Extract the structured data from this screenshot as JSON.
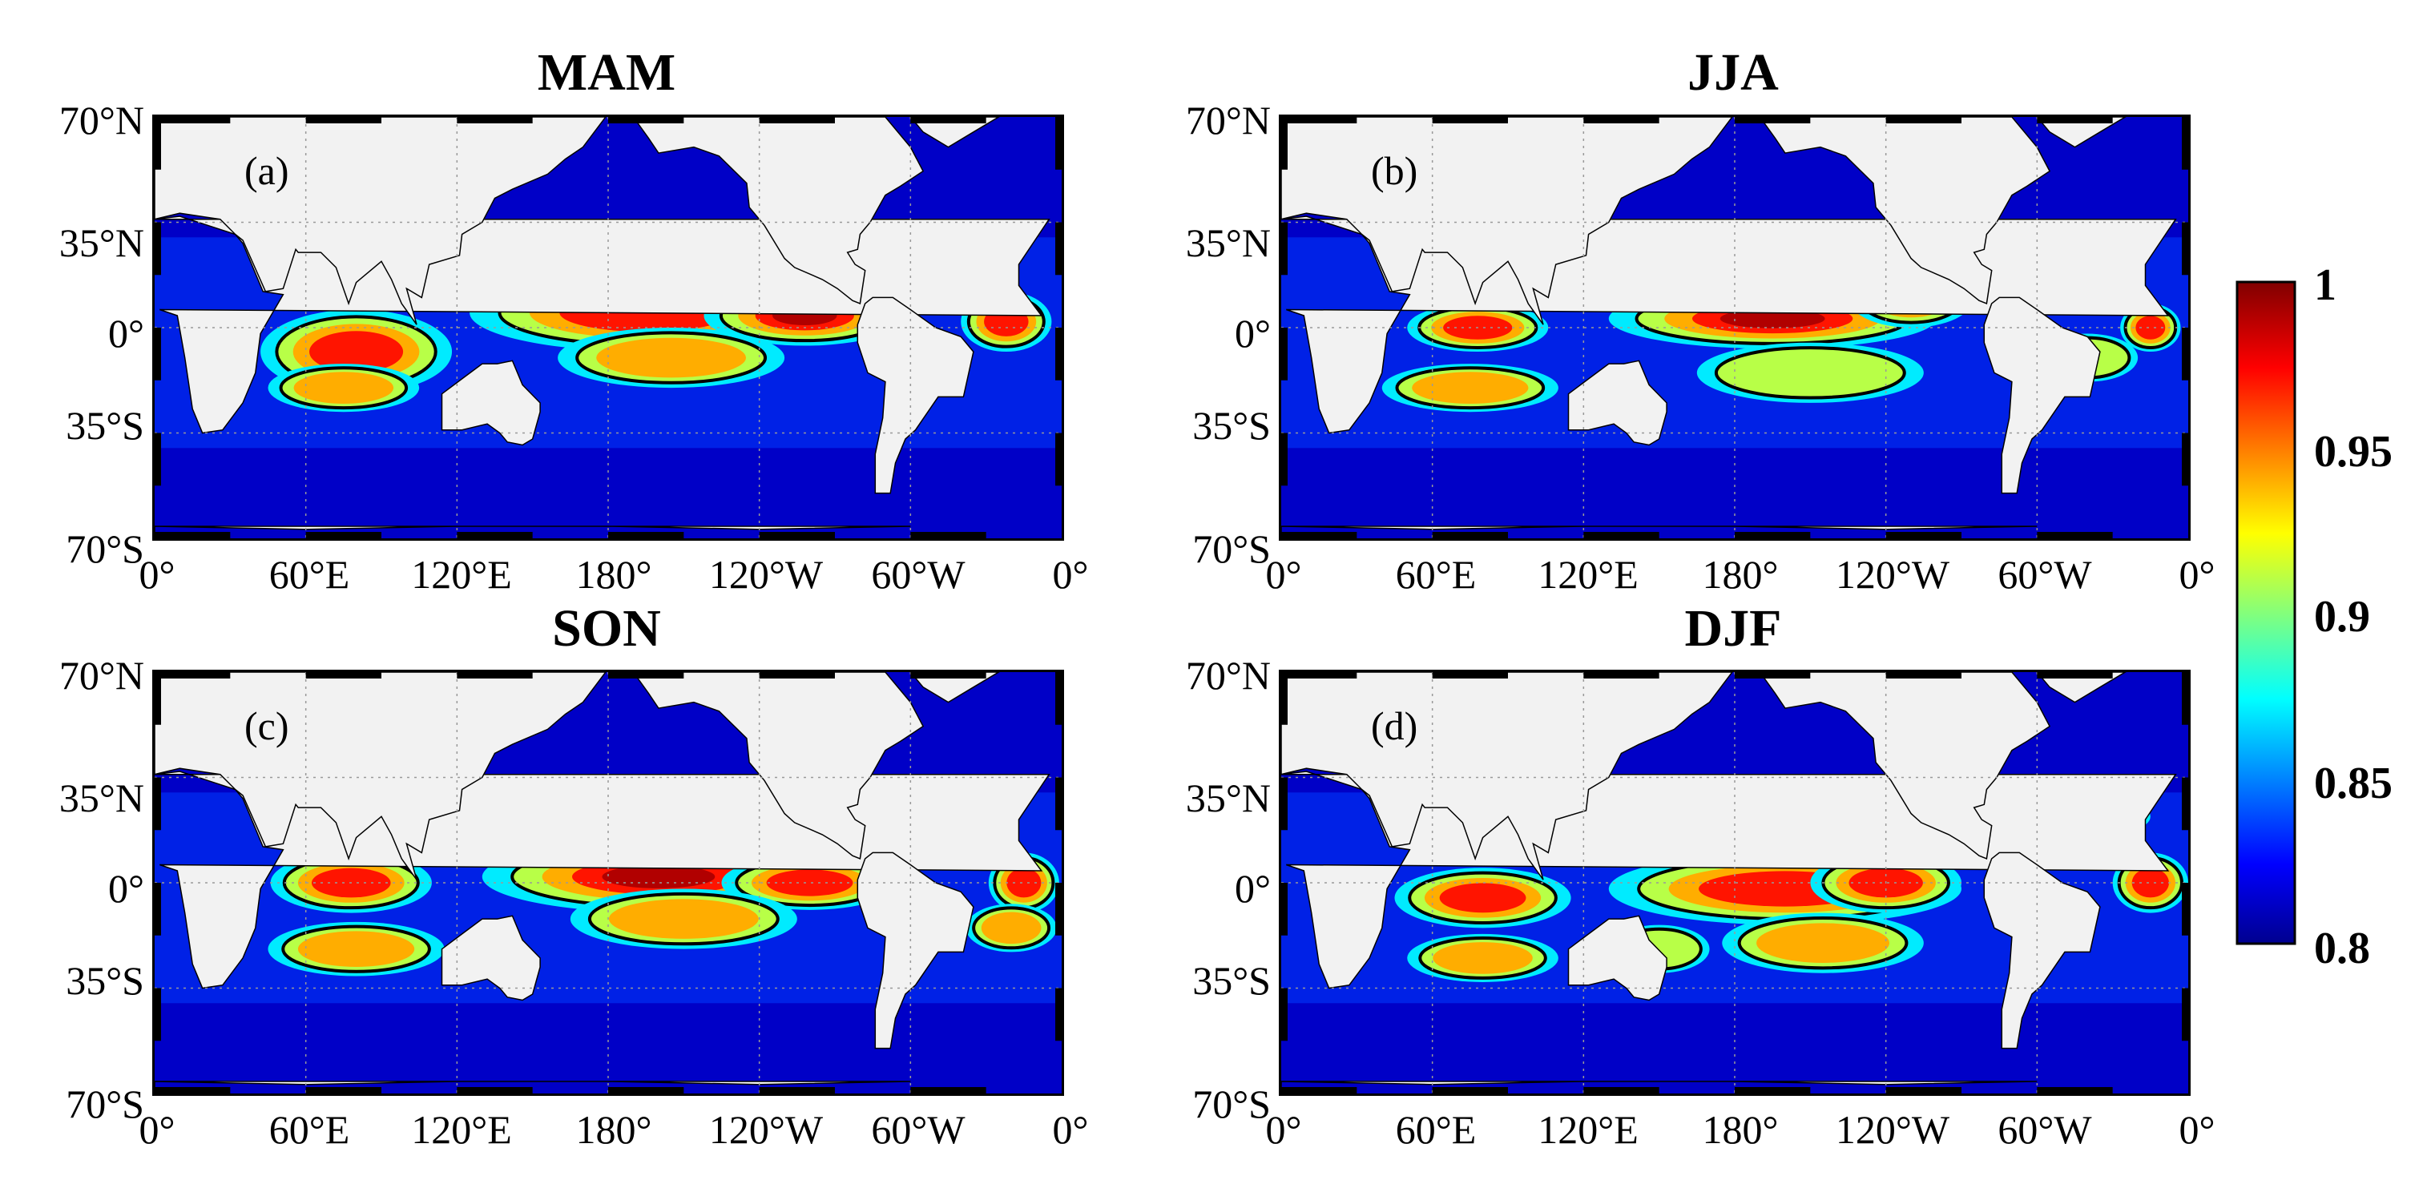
{
  "panels": [
    {
      "title": "MAM",
      "letter": "(a)"
    },
    {
      "title": "JJA",
      "letter": "(b)"
    },
    {
      "title": "SON",
      "letter": "(c)"
    },
    {
      "title": "DJF",
      "letter": "(d)"
    }
  ],
  "axes": {
    "y_ticks": [
      "70°N",
      "35°N",
      "0°",
      "35°S",
      "70°S"
    ],
    "x_ticks": [
      "0°",
      "60°E",
      "120°E",
      "180°",
      "120°W",
      "60°W",
      "0°"
    ]
  },
  "colorbar": {
    "min": 0.8,
    "max": 1,
    "tick_labels": [
      "1",
      "0.95",
      "0.9",
      "0.85",
      "0.8"
    ],
    "colormap": "jet",
    "colors": [
      "#00008f",
      "#0000ff",
      "#00ffff",
      "#ffff00",
      "#ff0000",
      "#800000"
    ]
  },
  "land_color": "#f2f2f2",
  "contour_color": "#000000"
}
